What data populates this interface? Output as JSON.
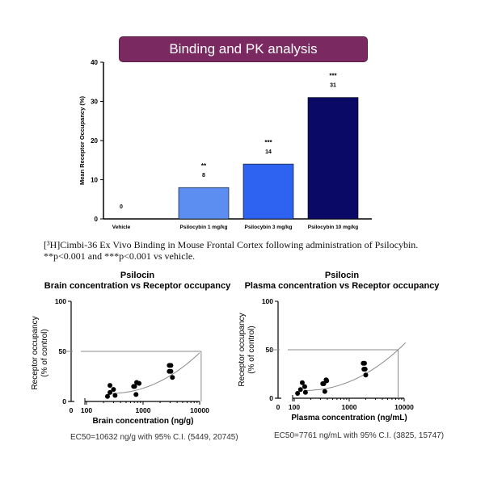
{
  "banner": {
    "title": "Binding and PK analysis",
    "color": "#7a2a60"
  },
  "caption": {
    "line1": "[³H]Cimbi-36 Ex Vivo Binding in Mouse Frontal Cortex following administration of Psilocybin.",
    "line2": "**p<0.001 and ***p<0.001 vs vehicle."
  },
  "chart_data": [
    {
      "type": "bar",
      "ylabel": "Mean Receptor Occupancy (%)",
      "ylim": [
        0,
        40
      ],
      "yticks": [
        "0",
        "10",
        "20",
        "30",
        "40"
      ],
      "categories": [
        "Vehicle",
        "Psilocybin 1 mg/kg",
        "Psilocybin 3 mg/kg",
        "Psilocybin 10 mg/kg"
      ],
      "values": [
        0,
        8,
        14,
        31
      ],
      "labels": [
        "0",
        "8",
        "14",
        "31"
      ],
      "significance": [
        "",
        "**",
        "***",
        "***"
      ],
      "colors": [
        "#ffffff",
        "#5b8ef0",
        "#2e63f2",
        "#0a0a66"
      ]
    },
    {
      "type": "scatter",
      "title": "Psilocin",
      "subtitle": "Brain concentration vs Receptor occupancy",
      "xlabel": "Brain concentration (ng/g)",
      "ylabel": "Receptor occupancy",
      "ylabel2": "(% of control)",
      "xscale": "log",
      "xticks": [
        "0",
        "100",
        "1000",
        "10000"
      ],
      "yticks": [
        "0",
        "50",
        "100"
      ],
      "ylim": [
        0,
        100
      ],
      "points": [
        [
          235,
          5
        ],
        [
          260,
          9
        ],
        [
          260,
          16
        ],
        [
          300,
          12
        ],
        [
          320,
          6
        ],
        [
          680,
          15
        ],
        [
          710,
          15
        ],
        [
          750,
          7
        ],
        [
          770,
          19
        ],
        [
          850,
          18
        ],
        [
          2900,
          36
        ],
        [
          3100,
          36
        ],
        [
          2900,
          30
        ],
        [
          3100,
          30
        ],
        [
          3300,
          24
        ]
      ],
      "ec50_note": "EC50=10632 ng/g with 95% C.I. (5449, 20745)"
    },
    {
      "type": "scatter",
      "title": "Psilocin",
      "subtitle": "Plasma concentration vs Receptor occupancy",
      "xlabel": "Plasma concentration (ng/mL)",
      "ylabel": "Receptor occupancy",
      "ylabel2": "(% of control)",
      "xscale": "log",
      "xticks": [
        "0",
        "100",
        "1000",
        "10000"
      ],
      "yticks": [
        "0",
        "50",
        "100"
      ],
      "ylim": [
        0,
        100
      ],
      "points": [
        [
          115,
          5
        ],
        [
          130,
          9
        ],
        [
          140,
          16
        ],
        [
          155,
          12
        ],
        [
          160,
          6
        ],
        [
          330,
          15
        ],
        [
          345,
          15
        ],
        [
          360,
          7
        ],
        [
          380,
          19
        ],
        [
          390,
          18
        ],
        [
          1800,
          36
        ],
        [
          1900,
          36
        ],
        [
          1850,
          30
        ],
        [
          1950,
          30
        ],
        [
          2000,
          24
        ]
      ],
      "ec50_note": "EC50=7761 ng/mL with 95% C.I. (3825, 15747)"
    }
  ]
}
